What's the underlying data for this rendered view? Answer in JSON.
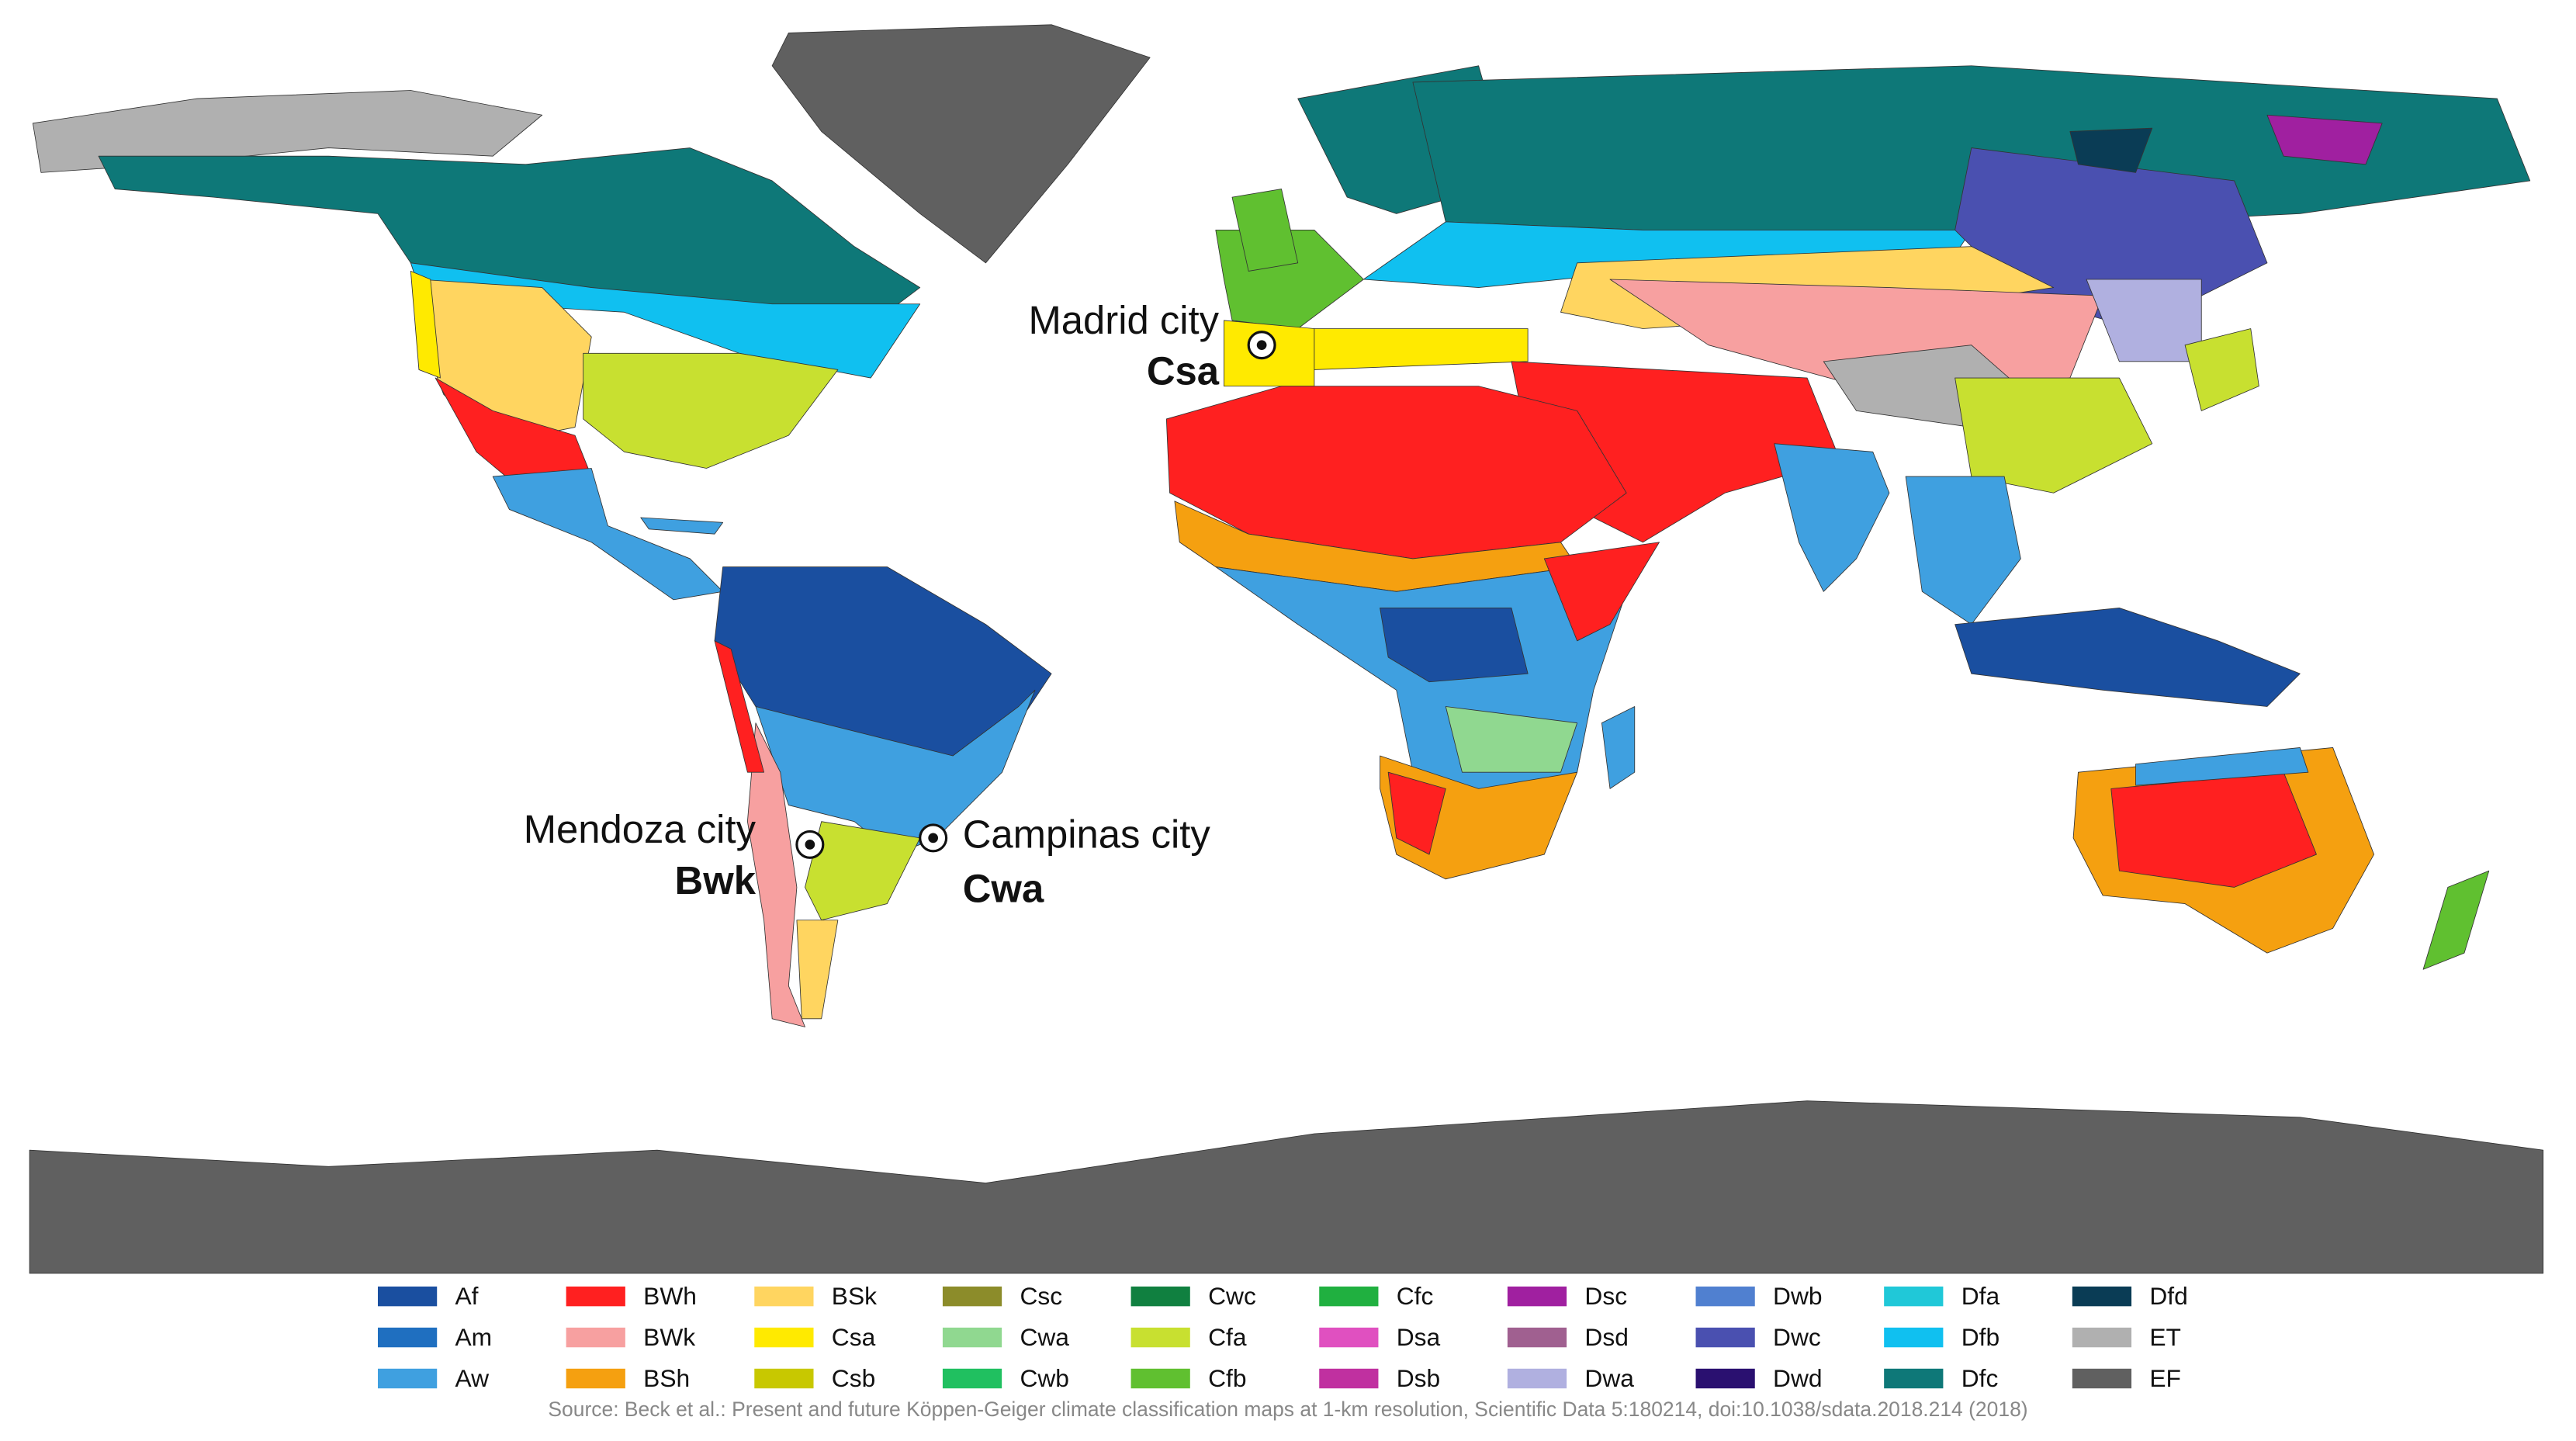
{
  "annotations": [
    {
      "city": "Madrid city",
      "class": "Csa"
    },
    {
      "city": "Mendoza city",
      "class": "Bwk"
    },
    {
      "city": "Campinas city",
      "class": "Cwa"
    }
  ],
  "legend": [
    {
      "code": "Af",
      "color": "#1a4fa0"
    },
    {
      "code": "Am",
      "color": "#1f6fc0"
    },
    {
      "code": "Aw",
      "color": "#3fa0e0"
    },
    {
      "code": "BWh",
      "color": "#ff2020"
    },
    {
      "code": "BWk",
      "color": "#f7a0a0"
    },
    {
      "code": "BSh",
      "color": "#f5a010"
    },
    {
      "code": "BSk",
      "color": "#ffd560"
    },
    {
      "code": "Csa",
      "color": "#ffea00"
    },
    {
      "code": "Csb",
      "color": "#c8c800"
    },
    {
      "code": "Csc",
      "color": "#8c8c2a"
    },
    {
      "code": "Cwa",
      "color": "#90d890"
    },
    {
      "code": "Cwb",
      "color": "#20c060"
    },
    {
      "code": "Cwc",
      "color": "#108040"
    },
    {
      "code": "Cfa",
      "color": "#c8e030"
    },
    {
      "code": "Cfb",
      "color": "#60c030"
    },
    {
      "code": "Cfc",
      "color": "#20b040"
    },
    {
      "code": "Dsa",
      "color": "#e050c0"
    },
    {
      "code": "Dsb",
      "color": "#c030a0"
    },
    {
      "code": "Dsc",
      "color": "#a020a0"
    },
    {
      "code": "Dsd",
      "color": "#a06090"
    },
    {
      "code": "Dwa",
      "color": "#b0b0e0"
    },
    {
      "code": "Dwb",
      "color": "#5080d0"
    },
    {
      "code": "Dwc",
      "color": "#4a50b0"
    },
    {
      "code": "Dwd",
      "color": "#2a1070"
    },
    {
      "code": "Dfa",
      "color": "#20c8d8"
    },
    {
      "code": "Dfb",
      "color": "#10c0f0"
    },
    {
      "code": "Dfc",
      "color": "#0e7878"
    },
    {
      "code": "Dfd",
      "color": "#0a3c55"
    },
    {
      "code": "ET",
      "color": "#b0b0b0"
    },
    {
      "code": "EF",
      "color": "#606060"
    }
  ],
  "source": "Source: Beck et al.: Present and future Köppen-Geiger climate classification maps at 1-km resolution, Scientific Data 5:180214, doi:10.1038/sdata.2018.214 (2018)"
}
